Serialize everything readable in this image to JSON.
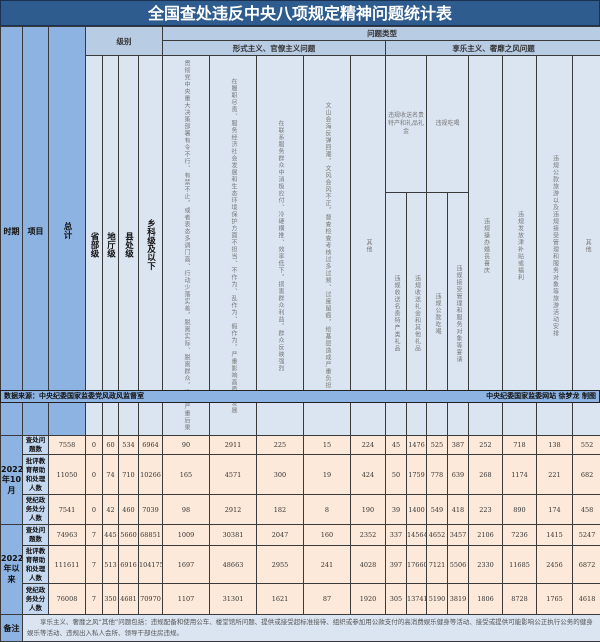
{
  "title": "全国查处违反中央八项规定精神问题统计表",
  "header": {
    "period": "时期",
    "item": "项目",
    "total": "总计",
    "level": "级别",
    "problem_type": "问题类型",
    "formalism": "形式主义、官僚主义问题",
    "hedonism": "享乐主义、奢靡之风问题",
    "levels": [
      "省部级",
      "地厅级",
      "县处级",
      "乡科级及以下"
    ],
    "formalism_cols": [
      "贯彻党中央重大决策部署有令不行、有禁不止，或者表态多调门高、行动少落实差，脱离实际、脱离群众，造成严重后果",
      "在履职尽责、服务经济社会发展和生态环境保护方面不担当、不作为、乱作为、假作为，严重影响高质量发展",
      "在联系服务群众中消极应付、冷硬横推、效率低下，损害群众利益，群众反映强烈",
      "文山会海反弹回潮，文风会风不正，督查检查考核过多过频、过度留痕，给基层造成严重负担",
      "其他"
    ],
    "gifts": "违规收送名贵特产和礼品礼金",
    "gifts_sub": [
      "违规收送名贵特产类礼品",
      "违规收送礼金和其他礼品"
    ],
    "dining": "违规吃喝",
    "dining_sub": [
      "违规公款吃喝",
      "违规接受管理和服务对象等宴请"
    ],
    "weddings": "违规操办婚丧喜庆",
    "allowance": "违规发放津补贴或福利",
    "travel": "违规公款旅游以及违规接受管理和服务对象等旅游活动安排",
    "other": "其他"
  },
  "periods": [
    {
      "label": "2022年10月",
      "rows": [
        {
          "item": "查处问题数",
          "values": [
            "7558",
            "0",
            "60",
            "534",
            "6964",
            "90",
            "2911",
            "225",
            "15",
            "224",
            "45",
            "1476",
            "525",
            "387",
            "252",
            "718",
            "138",
            "552"
          ]
        },
        {
          "item": "批评教育帮助和处理人数",
          "values": [
            "11050",
            "0",
            "74",
            "710",
            "10266",
            "165",
            "4571",
            "300",
            "19",
            "424",
            "50",
            "1759",
            "778",
            "639",
            "268",
            "1174",
            "221",
            "682"
          ]
        },
        {
          "item": "党纪政务处分人数",
          "values": [
            "7541",
            "0",
            "42",
            "460",
            "7039",
            "98",
            "2912",
            "182",
            "8",
            "190",
            "39",
            "1400",
            "549",
            "418",
            "223",
            "890",
            "174",
            "458"
          ]
        }
      ]
    },
    {
      "label": "2022年以来",
      "rows": [
        {
          "item": "查处问题数",
          "values": [
            "74963",
            "7",
            "445",
            "5660",
            "68851",
            "1009",
            "30381",
            "2047",
            "160",
            "2352",
            "337",
            "14564",
            "4652",
            "3457",
            "2106",
            "7236",
            "1415",
            "5247"
          ]
        },
        {
          "item": "批评教育帮助和处理人数",
          "values": [
            "111611",
            "7",
            "513",
            "6916",
            "104175",
            "1697",
            "48663",
            "2955",
            "241",
            "4028",
            "397",
            "17660",
            "7121",
            "5506",
            "2330",
            "11685",
            "2456",
            "6872"
          ]
        },
        {
          "item": "党纪政务处分人数",
          "values": [
            "76008",
            "7",
            "350",
            "4681",
            "70970",
            "1107",
            "31301",
            "1621",
            "87",
            "1920",
            "305",
            "13741",
            "5190",
            "3819",
            "1806",
            "8728",
            "1765",
            "4618"
          ]
        }
      ]
    }
  ],
  "note_label": "备注",
  "note_text": "享乐主义、奢靡之风“其他”问题包括：违规配备和使用公车、楼堂馆所问题、提供或接受超标准接待、组织或参加用公款支付的高消费娱乐健身等活动、接受或提供可能影响公正执行公务的健身娱乐等活动、违规出入私人会所、领导干部住房违规。",
  "source": "数据来源：中央纪委国家监委党风政风监督室",
  "credit": "中央纪委国家监委网站 徐梦龙 制图"
}
